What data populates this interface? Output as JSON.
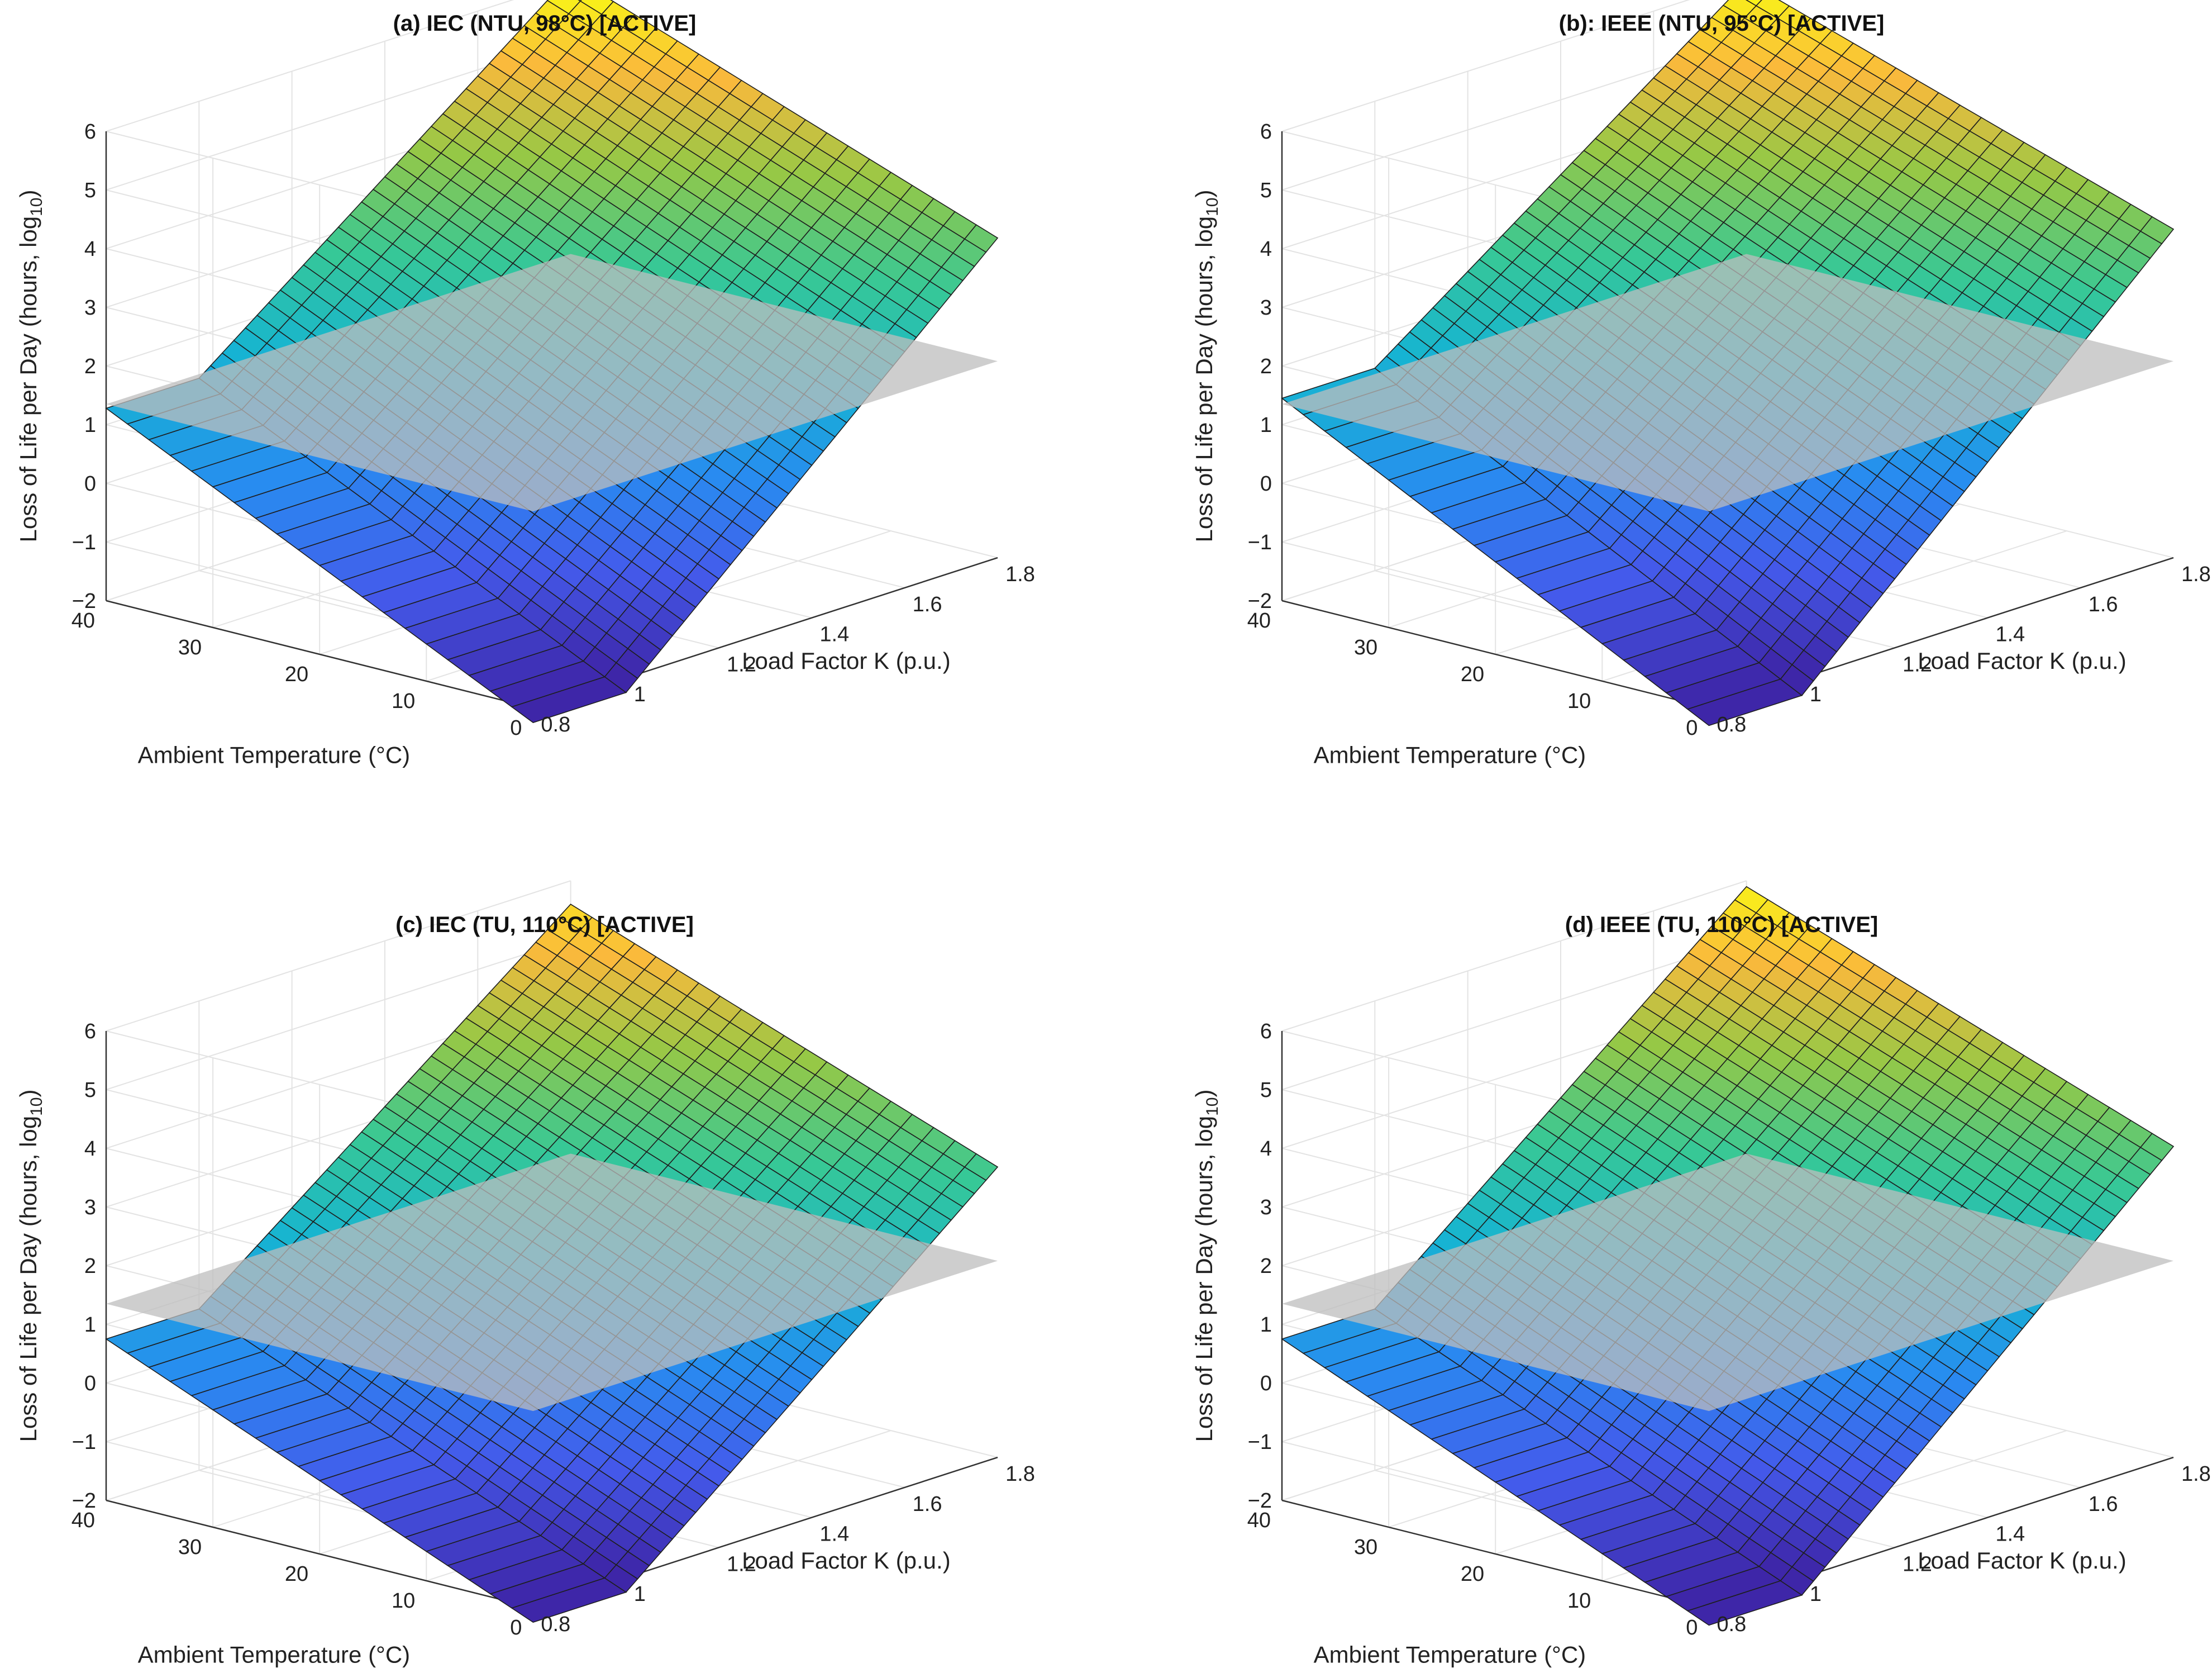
{
  "figure": {
    "caption_hidden": ""
  },
  "chart_data": [
    {
      "type": "surface",
      "title": "(a)  IEC  (NTU,  98°C)  [ACTIVE]",
      "xlabel": "Load Factor K (p.u.)",
      "ylabel": "Ambient  Temperature  (°C)",
      "zlabel": "Loss  of  Life  per  Day  (hours,  log",
      "zlabel_sub": "10",
      "zlabel_close": ")",
      "xlim": [
        0.8,
        1.8
      ],
      "ylim": [
        0,
        40
      ],
      "zlim": [
        -2,
        6
      ],
      "xticks": [
        "0.8",
        "1",
        "1.2",
        "1.4",
        "1.6",
        "1.8"
      ],
      "yticks": [
        "0",
        "10",
        "20",
        "30",
        "40"
      ],
      "zticks": [
        "−2",
        "−1",
        "0",
        "1",
        "2",
        "3",
        "4",
        "5",
        "6"
      ],
      "reference_plane_z": 1.35,
      "z_threshold": 1.2,
      "surface_corners": {
        "K1_T40": 1.28,
        "K1_T0": -2.25,
        "K18_T40": 6.1,
        "K18_T0": 3.45
      },
      "grid": true
    },
    {
      "type": "surface",
      "title": "(b):  IEEE  (NTU,  95°C)  [ACTIVE]",
      "xlabel": "Load Factor K (p.u.)",
      "ylabel": "Ambient  Temperature  (°C)",
      "zlabel": "Loss  of  Life  per  Day  (hours,  log",
      "zlabel_sub": "10",
      "zlabel_close": ")",
      "xlim": [
        0.8,
        1.8
      ],
      "ylim": [
        0,
        40
      ],
      "zlim": [
        -2,
        6
      ],
      "xticks": [
        "0.8",
        "1",
        "1.2",
        "1.4",
        "1.6",
        "1.8"
      ],
      "yticks": [
        "0",
        "10",
        "20",
        "30",
        "40"
      ],
      "zticks": [
        "−2",
        "−1",
        "0",
        "1",
        "2",
        "3",
        "4",
        "5",
        "6"
      ],
      "reference_plane_z": 1.35,
      "z_threshold": 1.2,
      "surface_corners": {
        "K1_T40": 1.45,
        "K1_T0": -2.3,
        "K18_T40": 6.0,
        "K18_T0": 3.6
      },
      "grid": true
    },
    {
      "type": "surface",
      "title": "(c)  IEC  (TU,  110°C)  [ACTIVE]",
      "xlabel": "Load Factor K (p.u.)",
      "ylabel": "Ambient  Temperature  (°C)",
      "zlabel": "Loss  of  Life  per  Day  (hours,  log",
      "zlabel_sub": "10",
      "zlabel_close": ")",
      "xlim": [
        0.8,
        1.8
      ],
      "ylim": [
        0,
        40
      ],
      "zlim": [
        -2,
        6
      ],
      "xticks": [
        "0.8",
        "1",
        "1.2",
        "1.4",
        "1.6",
        "1.8"
      ],
      "yticks": [
        "0",
        "10",
        "20",
        "30",
        "40"
      ],
      "zticks": [
        "−2",
        "−1",
        "0",
        "1",
        "2",
        "3",
        "4",
        "5",
        "6"
      ],
      "reference_plane_z": 1.35,
      "z_threshold": 0.6,
      "surface_corners": {
        "K1_T40": 0.75,
        "K1_T0": -2.25,
        "K18_T40": 5.6,
        "K18_T0": 2.95
      },
      "grid": true
    },
    {
      "type": "surface",
      "title": "(d)  IEEE  (TU,  110°C)  [ACTIVE]",
      "xlabel": "Load Factor K (p.u.)",
      "ylabel": "Ambient  Temperature  (°C)",
      "zlabel": "Loss  of  Life  per  Day  (hours,  log",
      "zlabel_sub": "10",
      "zlabel_close": ")",
      "xlim": [
        0.8,
        1.8
      ],
      "ylim": [
        0,
        40
      ],
      "zlim": [
        -2,
        6
      ],
      "xticks": [
        "0.8",
        "1",
        "1.2",
        "1.4",
        "1.6",
        "1.8"
      ],
      "yticks": [
        "0",
        "10",
        "20",
        "30",
        "40"
      ],
      "zticks": [
        "−2",
        "−1",
        "0",
        "1",
        "2",
        "3",
        "4",
        "5",
        "6"
      ],
      "reference_plane_z": 1.35,
      "z_threshold": 0.6,
      "surface_corners": {
        "K1_T40": 0.75,
        "K1_T0": -2.3,
        "K18_T40": 5.9,
        "K18_T0": 3.3
      },
      "grid": true
    }
  ]
}
